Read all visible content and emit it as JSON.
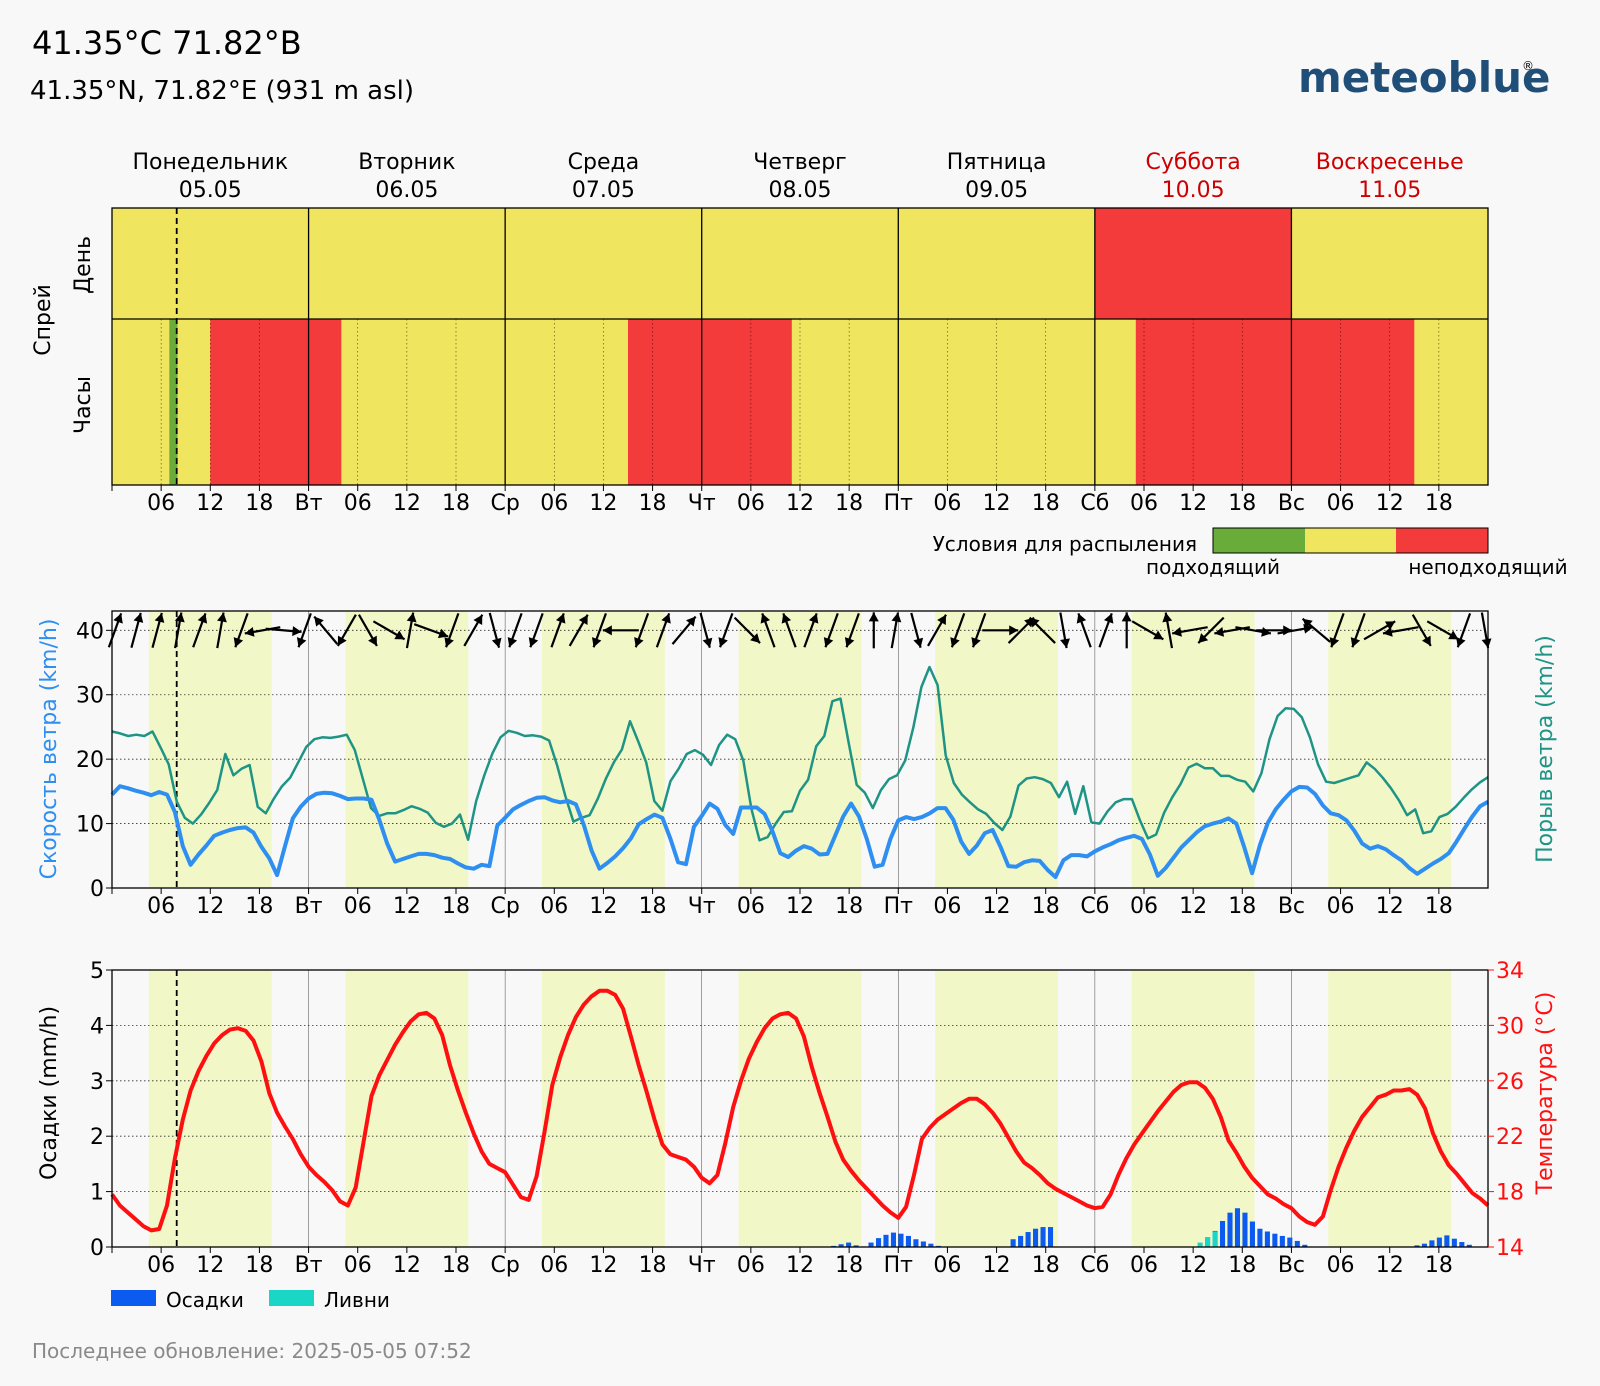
{
  "header": {
    "title": "41.35°C 71.82°B",
    "subtitle": "41.35°N, 71.82°E (931 m asl)",
    "brand": "meteoblue",
    "brand_mark": "®",
    "brand_color": "#1f4e79"
  },
  "days": [
    {
      "name": "Понедельник",
      "date": "05.05",
      "weekend": false
    },
    {
      "name": "Вторник",
      "date": "06.05",
      "weekend": false
    },
    {
      "name": "Среда",
      "date": "07.05",
      "weekend": false
    },
    {
      "name": "Четверг",
      "date": "08.05",
      "weekend": false
    },
    {
      "name": "Пятница",
      "date": "09.05",
      "weekend": false
    },
    {
      "name": "Суббота",
      "date": "10.05",
      "weekend": true
    },
    {
      "name": "Воскресенье",
      "date": "11.05",
      "weekend": true
    }
  ],
  "x_ticks": [
    "",
    "06",
    "12",
    "18",
    "Вт",
    "06",
    "12",
    "18",
    "Ср",
    "06",
    "12",
    "18",
    "Чт",
    "06",
    "12",
    "18",
    "Пт",
    "06",
    "12",
    "18",
    "Сб",
    "06",
    "12",
    "18",
    "Вс",
    "06",
    "12",
    "18"
  ],
  "colors": {
    "good": "#6aac3a",
    "medium": "#f0e55e",
    "bad": "#f33b3b",
    "weekend": "#cc0000",
    "wind": "#2f8ff0",
    "gust": "#1f9485",
    "temp": "#ff1010",
    "precip": "#0b5bf0",
    "showers": "#1ad6c7",
    "daylight": "#f2f7c7"
  },
  "spray": {
    "ylabel": "Спрей",
    "row_day": "День",
    "row_hours": "Часы",
    "legend_title": "Условия для распыления",
    "legend_good": "подходящий",
    "legend_bad": "неподходящий",
    "daily": [
      "medium",
      "medium",
      "medium",
      "medium",
      "medium",
      "bad",
      "medium"
    ],
    "hourly_codes": "MMMMMMMGMMMMBBBBBBBBBBBBBBBBMMMMMMMMMMMMMMMMMMMMMMMMMMMMMMMMMMMBBBBBBBBBBBBBBBBBBBBMMMMMMMMMMMMMMMMMMMMMMMMMMMMMMMMMMMMMMMMMMBBBBBBBBBBBBBBBBBBBBBBBBBBBBBBBBBBMMMMMMMMMMMMMMMMMMMMMMMMMMMMMMMMMMMMGGGGGMMMMMMMMMMMMMMMMBBBBBBBBBBBBBBBBBBBMMMMMMMMMMMMMMMMMMMMMMMMMMMMMMBBBBBBBBBBBBBBBBBBBBMMMMMMMMMGGGGMMMMMMMMMMMMGGGGGGGGGGGGBBBBBBBBBBBBBBBBBBGMMMMMMMGGGGGGGGGGGGGGGGGGGMMMMMMMMMMMMMMMMMMMMBBBBBBBBBBBBBBBBBBBBBBBBBBBBBBBBBBBBBMMMMMMMMMMMMMMMMMMMMMMMMMMMMMBBBBBBBMMMMMMMMMMMMMMMMMMMMMMMMMMMMMMMMMMMMMMMMMMMMMMMMMMMMMMMMMMMMMMMMMMMMMMMMMMMMMMMMMMMMMMMMMMMMMMMMMMMMMMMMMMMMMMMMMMMMMMMMMMMMMMMMMMMMMMMMMMMMMMMMMMMMMMMMMMMMMMMMMMMMMMMMMMMMMMMMMMMMMMMMMMMMMMMMMMMMMMMMMMMMMMMMMMMMMMMMMMMMMMMMMMMMMMMMMMMMMMMMMMMMMMMMMMMMMMMMMMMMMMMMMMMMMMMMMMMMMMMMMMMMMMMMMMMMMMMMMMMMMMMMMMMMMMMMMMMMMMMMMMMMMMMMMMMMMMMMMMMMMMMMMMMMMMMMMMMMMMMMMMMMMMMM"
  },
  "wind": {
    "ylabel_left": "Скорость ветра (km/h)",
    "ylabel_right": "Порыв ветра (km/h)",
    "yticks": [
      "0",
      "10",
      "20",
      "30",
      "40"
    ],
    "ylim": [
      0,
      43
    ],
    "speed": [
      14.5,
      15.8,
      15.5,
      15.1,
      14.8,
      14.4,
      14.9,
      14.5,
      11.8,
      6.5,
      3.6,
      5.2,
      6.6,
      8.1,
      8.6,
      9.0,
      9.3,
      9.4,
      8.6,
      6.4,
      4.6,
      2.0,
      6.5,
      10.8,
      12.6,
      13.9,
      14.6,
      14.8,
      14.7,
      14.3,
      13.8,
      13.9,
      13.9,
      13.7,
      10.6,
      6.9,
      4.1,
      4.5,
      4.9,
      5.3,
      5.3,
      5.1,
      4.7,
      4.5,
      3.8,
      3.2,
      3.0,
      3.6,
      3.4,
      9.7,
      10.9,
      12.2,
      12.9,
      13.5,
      14.0,
      14.1,
      13.6,
      13.3,
      13.5,
      13.0,
      9.8,
      5.8,
      3.0,
      3.9,
      4.9,
      6.2,
      7.7,
      9.9,
      10.7,
      11.4,
      10.9,
      7.7,
      4.0,
      3.7,
      9.5,
      11.2,
      13.1,
      12.3,
      9.8,
      8.4,
      12.5,
      12.5,
      12.5,
      11.5,
      8.8,
      5.4,
      4.8,
      5.8,
      6.5,
      6.1,
      5.2,
      5.3,
      8.2,
      11.1,
      13.1,
      11.1,
      7.6,
      3.3,
      3.6,
      7.6,
      10.5,
      11.0,
      10.7,
      11.0,
      11.6,
      12.4,
      12.4,
      10.6,
      7.2,
      5.3,
      6.6,
      8.5,
      9.0,
      6.4,
      3.4,
      3.3,
      4.0,
      4.3,
      4.2,
      2.8,
      1.7,
      4.3,
      5.1,
      5.1,
      4.9,
      5.7,
      6.3,
      6.8,
      7.4,
      7.8,
      8.1,
      7.6,
      5.2,
      1.9,
      3.1,
      4.7,
      6.3,
      7.5,
      8.7,
      9.6,
      10.0,
      10.3,
      10.8,
      10.0,
      6.3,
      2.3,
      6.7,
      10.1,
      12.2,
      13.7,
      15.0,
      15.7,
      15.6,
      14.6,
      12.8,
      11.6,
      11.3,
      10.5,
      8.9,
      6.9,
      6.1,
      6.5,
      6.0,
      5.1,
      4.3,
      3.1,
      2.2,
      3.0,
      3.8,
      4.5,
      5.4,
      7.2,
      9.2,
      11.1,
      12.7,
      13.4
    ],
    "gust": [
      24.3,
      24.0,
      23.6,
      23.8,
      23.6,
      24.3,
      21.8,
      19.2,
      13.4,
      10.9,
      10.0,
      11.4,
      13.2,
      15.2,
      20.8,
      17.5,
      18.5,
      19.1,
      12.6,
      11.6,
      13.9,
      15.8,
      17.1,
      19.5,
      21.9,
      23.1,
      23.4,
      23.3,
      23.5,
      23.8,
      21.4,
      16.9,
      12.4,
      11.2,
      11.6,
      11.6,
      12.1,
      12.7,
      12.3,
      11.7,
      10.1,
      9.5,
      10.0,
      11.4,
      7.5,
      13.5,
      17.5,
      20.9,
      23.4,
      24.4,
      24.1,
      23.6,
      23.7,
      23.5,
      22.9,
      19.0,
      14.3,
      10.3,
      10.9,
      11.3,
      13.8,
      16.9,
      19.5,
      21.5,
      25.9,
      22.8,
      19.5,
      13.5,
      12.0,
      16.6,
      18.5,
      20.8,
      21.4,
      20.7,
      19.1,
      22.2,
      23.8,
      23.1,
      19.8,
      12.3,
      7.4,
      7.9,
      10.0,
      11.8,
      11.9,
      15.1,
      16.8,
      22.0,
      23.6,
      29.0,
      29.4,
      22.6,
      16.0,
      14.8,
      12.4,
      15.2,
      16.9,
      17.5,
      19.8,
      24.9,
      31.2,
      34.3,
      31.5,
      20.6,
      16.3,
      14.5,
      13.3,
      12.2,
      11.5,
      10.1,
      9.0,
      11.1,
      15.9,
      17.0,
      17.2,
      16.9,
      16.3,
      14.1,
      16.5,
      11.5,
      15.8,
      10.2,
      10.0,
      11.9,
      13.3,
      13.8,
      13.8,
      10.5,
      7.7,
      8.3,
      11.7,
      14.1,
      16.1,
      18.7,
      19.3,
      18.6,
      18.6,
      17.4,
      17.4,
      16.8,
      16.5,
      15.0,
      17.8,
      23.1,
      26.7,
      27.9,
      27.8,
      26.5,
      23.4,
      19.2,
      16.5,
      16.3,
      16.7,
      17.1,
      17.5,
      19.5,
      18.5,
      17.1,
      15.5,
      13.6,
      11.3,
      12.2,
      8.5,
      8.8,
      11.0,
      11.5,
      12.6,
      14.0,
      15.3,
      16.4,
      17.2
    ],
    "direction": [
      200,
      195,
      195,
      190,
      200,
      190,
      20,
      80,
      275,
      20,
      140,
      30,
      330,
      300,
      190,
      290,
      20,
      210,
      345,
      20,
      20,
      200,
      210,
      20,
      90,
      20,
      200,
      220,
      345,
      20,
      315,
      160,
      160,
      200,
      20,
      20,
      180,
      190,
      345,
      210,
      20,
      20,
      270,
      225,
      135,
      350,
      160,
      200,
      180,
      300,
      170,
      80,
      45,
      80,
      280,
      270,
      260,
      130,
      20,
      20,
      240,
      80,
      330,
      300,
      20,
      350
    ],
    "dir_length": 18
  },
  "precip": {
    "ylabel_left": "Осадки (mm/h)",
    "ylabel_right": "Температура (°C)",
    "yticks_left": [
      "0",
      "1",
      "2",
      "3",
      "4",
      "5"
    ],
    "yticks_right": [
      "14",
      "18",
      "22",
      "26",
      "30",
      "34"
    ],
    "ylim_left": [
      0,
      5
    ],
    "ylim_right": [
      14,
      34
    ],
    "legend_precip": "Осадки",
    "legend_showers": "Ливни",
    "temp": [
      17.8,
      17.0,
      16.5,
      16.0,
      15.5,
      15.2,
      15.3,
      17.0,
      20.4,
      23.2,
      25.3,
      26.7,
      27.8,
      28.7,
      29.3,
      29.7,
      29.8,
      29.6,
      28.9,
      27.4,
      25.1,
      23.7,
      22.7,
      21.8,
      20.7,
      19.8,
      19.2,
      18.7,
      18.1,
      17.3,
      17.0,
      18.3,
      21.6,
      24.9,
      26.4,
      27.5,
      28.6,
      29.5,
      30.3,
      30.8,
      30.9,
      30.5,
      29.3,
      27.1,
      25.3,
      23.7,
      22.2,
      20.9,
      20.0,
      19.7,
      19.4,
      18.5,
      17.6,
      17.4,
      19.1,
      22.3,
      25.7,
      27.7,
      29.3,
      30.6,
      31.5,
      32.1,
      32.5,
      32.5,
      32.2,
      31.2,
      29.2,
      27.1,
      25.2,
      23.2,
      21.4,
      20.7,
      20.5,
      20.3,
      19.8,
      19.0,
      18.6,
      19.2,
      21.5,
      24.1,
      26.0,
      27.6,
      28.8,
      29.8,
      30.5,
      30.8,
      30.9,
      30.5,
      29.2,
      27.0,
      25.1,
      23.4,
      21.6,
      20.3,
      19.5,
      18.8,
      18.2,
      17.6,
      17.0,
      16.5,
      16.1,
      16.9,
      19.2,
      21.8,
      22.6,
      23.2,
      23.6,
      24.0,
      24.4,
      24.7,
      24.7,
      24.3,
      23.7,
      22.9,
      21.9,
      20.9,
      20.1,
      19.7,
      19.2,
      18.6,
      18.2,
      17.9,
      17.6,
      17.3,
      17.0,
      16.8,
      16.9,
      17.8,
      19.2,
      20.4,
      21.4,
      22.2,
      23.0,
      23.8,
      24.5,
      25.2,
      25.7,
      25.9,
      25.9,
      25.5,
      24.7,
      23.4,
      21.7,
      20.8,
      19.8,
      19.0,
      18.4,
      17.8,
      17.5,
      17.1,
      16.8,
      16.2,
      15.8,
      15.6,
      16.2,
      18.1,
      19.8,
      21.2,
      22.4,
      23.4,
      24.1,
      24.8,
      25.0,
      25.3,
      25.3,
      25.4,
      25.0,
      24.0,
      22.2,
      20.9,
      19.9,
      19.3,
      18.6,
      17.9,
      17.5,
      17.0
    ],
    "rain": [
      0,
      0,
      0,
      0,
      0,
      0,
      0,
      0,
      0,
      0,
      0,
      0,
      0,
      0,
      0,
      0,
      0,
      0,
      0,
      0,
      0,
      0,
      0,
      0,
      0,
      0,
      0,
      0,
      0,
      0,
      0,
      0,
      0,
      0,
      0,
      0,
      0,
      0,
      0,
      0,
      0,
      0,
      0,
      0,
      0,
      0,
      0,
      0,
      0,
      0,
      0,
      0,
      0,
      0,
      0,
      0,
      0,
      0,
      0,
      0,
      0,
      0,
      0,
      0,
      0,
      0,
      0,
      0,
      0,
      0,
      0,
      0,
      0,
      0,
      0,
      0,
      0,
      0,
      0,
      0,
      0,
      0,
      0,
      0,
      0,
      0,
      0,
      0,
      0,
      0,
      0,
      0,
      0,
      0,
      0,
      0,
      0.02,
      0.05,
      0.08,
      0.03,
      0.01,
      0.08,
      0.16,
      0.22,
      0.26,
      0.24,
      0.2,
      0.14,
      0.1,
      0.06,
      0.02,
      0,
      0,
      0,
      0,
      0,
      0,
      0,
      0,
      0,
      0.14,
      0.2,
      0.27,
      0.33,
      0.36,
      0.36,
      0,
      0,
      0,
      0,
      0,
      0,
      0,
      0,
      0,
      0,
      0,
      0,
      0,
      0,
      0,
      0,
      0,
      0,
      0,
      0.02,
      0.17,
      0.29,
      0.47,
      0.62,
      0.7,
      0.62,
      0.46,
      0.33,
      0.28,
      0.24,
      0.2,
      0.17,
      0.11,
      0.04,
      0,
      0,
      0,
      0,
      0,
      0,
      0,
      0,
      0,
      0,
      0,
      0,
      0,
      0,
      0.03,
      0.06,
      0.12,
      0.17,
      0.21,
      0.15,
      0.09,
      0.04,
      0,
      0
    ],
    "showers": [
      0,
      0,
      0,
      0,
      0,
      0,
      0,
      0,
      0,
      0,
      0,
      0,
      0,
      0,
      0,
      0,
      0,
      0,
      0,
      0,
      0,
      0,
      0,
      0,
      0,
      0,
      0,
      0,
      0,
      0,
      0,
      0,
      0,
      0,
      0,
      0,
      0,
      0,
      0,
      0,
      0,
      0,
      0,
      0,
      0,
      0,
      0,
      0,
      0,
      0,
      0,
      0,
      0,
      0,
      0,
      0,
      0,
      0,
      0,
      0,
      0,
      0,
      0,
      0,
      0,
      0,
      0,
      0,
      0,
      0,
      0,
      0,
      0,
      0,
      0,
      0,
      0,
      0,
      0,
      0,
      0,
      0,
      0,
      0,
      0,
      0,
      0,
      0,
      0,
      0,
      0,
      0,
      0,
      0,
      0,
      0,
      0,
      0,
      0,
      0,
      0,
      0,
      0,
      0,
      0,
      0,
      0,
      0,
      0,
      0,
      0,
      0,
      0,
      0,
      0,
      0,
      0,
      0,
      0,
      0,
      0,
      0,
      0,
      0,
      0,
      0,
      0,
      0,
      0,
      0,
      0,
      0,
      0,
      0,
      0,
      0,
      0,
      0,
      0,
      0,
      0,
      0,
      0,
      0,
      0,
      0.08,
      0.18,
      0.28,
      0,
      0,
      0,
      0,
      0,
      0,
      0,
      0,
      0,
      0,
      0,
      0,
      0,
      0,
      0,
      0,
      0,
      0,
      0,
      0,
      0,
      0,
      0,
      0,
      0,
      0,
      0,
      0,
      0,
      0,
      0,
      0,
      0,
      0,
      0,
      0,
      0,
      0
    ]
  },
  "daylight": {
    "start_hour": 4.5,
    "end_hour": 19.5
  },
  "current_hour": 7.9,
  "footer": {
    "updated": "Последнее обновление: 2025-05-05 07:52"
  },
  "chart_data": [
    {
      "type": "heatmap",
      "title": "Спрей",
      "rows": [
        "День",
        "Часы"
      ],
      "categories": [
        "05.05",
        "06.05",
        "07.05",
        "08.05",
        "09.05",
        "10.05",
        "11.05"
      ],
      "legend": [
        "подходящий",
        "неподходящий"
      ]
    },
    {
      "type": "line",
      "ylabel": "Скорость ветра (km/h)",
      "ylabel_right": "Порыв ветра (km/h)",
      "ylim": [
        0,
        43
      ],
      "series": [
        {
          "name": "Скорость ветра (km/h)"
        },
        {
          "name": "Порыв ветра (km/h)"
        }
      ]
    },
    {
      "type": "bar",
      "ylabel": "Осадки (mm/h)",
      "ylabel_right": "Температура (°C)",
      "ylim": [
        0,
        5
      ],
      "ylim_right": [
        14,
        34
      ],
      "series": [
        {
          "name": "Осадки"
        },
        {
          "name": "Ливни"
        },
        {
          "name": "Температура (°C)"
        }
      ]
    }
  ]
}
